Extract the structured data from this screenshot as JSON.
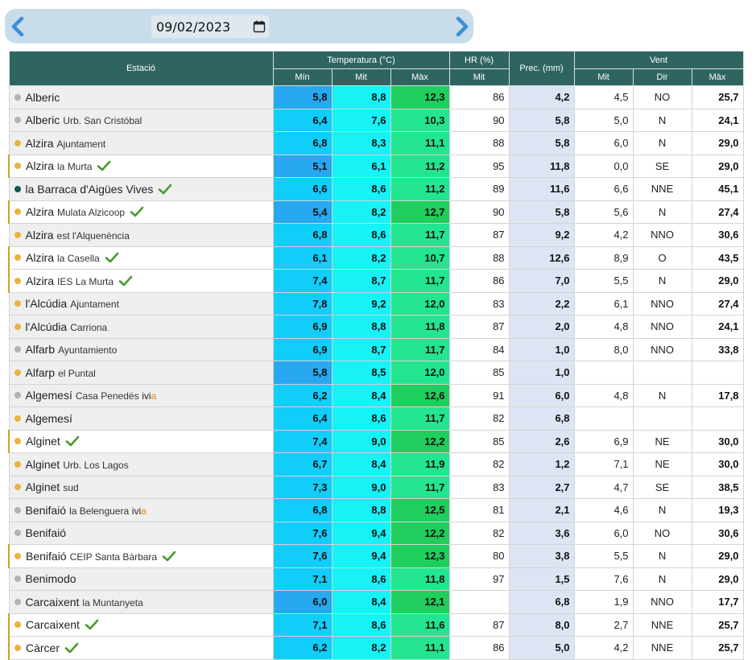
{
  "date": {
    "value": "09/02/2023",
    "prev_icon": "chevron-left-icon",
    "next_icon": "chevron-right-icon",
    "calendar_icon": "calendar-icon"
  },
  "colors": {
    "header_bg": "#2f6561",
    "min_cold": "#27a8f0",
    "min": "#10cdfa",
    "mit": "#16f2f6",
    "max_hot": "#1fce5c",
    "max": "#23e58f",
    "prec_bg": "#dde5f4",
    "dot_orange": "#e9b33c",
    "dot_gray": "#b2b2b2",
    "dot_teal": "#0d5a52",
    "check_green": "#4a9a2e",
    "ivia_a": "#e08a1e"
  },
  "table": {
    "group_headers": {
      "station": "Estació",
      "temp": "Temperatura (°C)",
      "hr": "HR (%)",
      "prec": "Prec. (mm)",
      "vent": "Vent"
    },
    "sub_headers": {
      "temp_min": "Mín",
      "temp_mit": "Mit",
      "temp_max": "Màx",
      "hr_mit": "Mit",
      "vent_mit": "Mit",
      "vent_dir": "Dir",
      "vent_max": "Màx"
    },
    "rows": [
      {
        "name": "Alberic",
        "sub": "",
        "dot": "gray",
        "check": false,
        "ivia": false,
        "hl": false,
        "min": "5,8",
        "min_cold": true,
        "mit": "8,8",
        "max": "12,3",
        "max_hot": true,
        "hr": "86",
        "prec": "4,2",
        "wmit": "4,5",
        "dir": "NO",
        "wmax": "25,7"
      },
      {
        "name": "Alberic",
        "sub": "Urb. San Cristóbal",
        "dot": "gray",
        "check": false,
        "ivia": false,
        "hl": false,
        "min": "6,4",
        "min_cold": false,
        "mit": "7,6",
        "max": "10,3",
        "max_hot": false,
        "hr": "90",
        "prec": "5,8",
        "wmit": "5,0",
        "dir": "N",
        "wmax": "24,1"
      },
      {
        "name": "Alzira",
        "sub": "Ajuntament",
        "dot": "orange",
        "check": false,
        "ivia": false,
        "hl": false,
        "min": "6,8",
        "min_cold": false,
        "mit": "8,3",
        "max": "11,1",
        "max_hot": false,
        "hr": "88",
        "prec": "5,8",
        "wmit": "6,0",
        "dir": "N",
        "wmax": "29,0"
      },
      {
        "name": "Alzira",
        "sub": "la Murta",
        "dot": "orange",
        "check": true,
        "ivia": false,
        "hl": true,
        "min": "5,1",
        "min_cold": true,
        "mit": "6,1",
        "max": "11,2",
        "max_hot": false,
        "hr": "95",
        "prec": "11,8",
        "wmit": "0,0",
        "dir": "SE",
        "wmax": "29,0"
      },
      {
        "name": "la Barraca d'Aigües Vives",
        "sub": "",
        "dot": "teal",
        "check": true,
        "ivia": false,
        "hl": false,
        "min": "6,6",
        "min_cold": false,
        "mit": "8,6",
        "max": "11,2",
        "max_hot": false,
        "hr": "89",
        "prec": "11,6",
        "wmit": "6,6",
        "dir": "NNE",
        "wmax": "45,1"
      },
      {
        "name": "Alzira",
        "sub": "Mulata Alzicoop",
        "dot": "orange",
        "check": true,
        "ivia": false,
        "hl": true,
        "min": "5,4",
        "min_cold": true,
        "mit": "8,2",
        "max": "12,7",
        "max_hot": true,
        "hr": "90",
        "prec": "5,8",
        "wmit": "5,6",
        "dir": "N",
        "wmax": "27,4"
      },
      {
        "name": "Alzira",
        "sub": "est l'Alquenència",
        "dot": "orange",
        "check": false,
        "ivia": false,
        "hl": false,
        "min": "6,8",
        "min_cold": false,
        "mit": "8,6",
        "max": "11,7",
        "max_hot": false,
        "hr": "87",
        "prec": "9,2",
        "wmit": "4,2",
        "dir": "NNO",
        "wmax": "30,6"
      },
      {
        "name": "Alzira",
        "sub": "la Casella",
        "dot": "orange",
        "check": true,
        "ivia": false,
        "hl": true,
        "min": "6,1",
        "min_cold": false,
        "mit": "8,2",
        "max": "10,7",
        "max_hot": false,
        "hr": "88",
        "prec": "12,6",
        "wmit": "8,9",
        "dir": "O",
        "wmax": "43,5"
      },
      {
        "name": "Alzira",
        "sub": "IES La Murta",
        "dot": "orange",
        "check": true,
        "ivia": false,
        "hl": true,
        "min": "7,4",
        "min_cold": false,
        "mit": "8,7",
        "max": "11,7",
        "max_hot": false,
        "hr": "86",
        "prec": "7,0",
        "wmit": "5,5",
        "dir": "N",
        "wmax": "29,0"
      },
      {
        "name": "l'Alcúdia",
        "sub": "Ajuntament",
        "dot": "orange",
        "check": false,
        "ivia": false,
        "hl": false,
        "min": "7,8",
        "min_cold": false,
        "mit": "9,2",
        "max": "12,0",
        "max_hot": false,
        "hr": "83",
        "prec": "2,2",
        "wmit": "6,1",
        "dir": "NNO",
        "wmax": "27,4"
      },
      {
        "name": "l'Alcúdia",
        "sub": "Carriona",
        "dot": "orange",
        "check": false,
        "ivia": false,
        "hl": false,
        "min": "6,9",
        "min_cold": false,
        "mit": "8,8",
        "max": "11,8",
        "max_hot": false,
        "hr": "87",
        "prec": "2,0",
        "wmit": "4,8",
        "dir": "NNO",
        "wmax": "24,1"
      },
      {
        "name": "Alfarb",
        "sub": "Ayuntamiento",
        "dot": "gray",
        "check": false,
        "ivia": false,
        "hl": false,
        "min": "6,9",
        "min_cold": false,
        "mit": "8,7",
        "max": "11,7",
        "max_hot": false,
        "hr": "84",
        "prec": "1,0",
        "wmit": "8,0",
        "dir": "NNO",
        "wmax": "33,8"
      },
      {
        "name": "Alfarp",
        "sub": "el Puntal",
        "dot": "orange",
        "check": false,
        "ivia": false,
        "hl": false,
        "min": "5,8",
        "min_cold": true,
        "mit": "8,5",
        "max": "12,0",
        "max_hot": false,
        "hr": "85",
        "prec": "1,0",
        "wmit": "",
        "dir": "",
        "wmax": ""
      },
      {
        "name": "Algemesí",
        "sub": "Casa Penedés",
        "dot": "gray",
        "check": false,
        "ivia": true,
        "hl": false,
        "min": "6,2",
        "min_cold": false,
        "mit": "8,4",
        "max": "12,6",
        "max_hot": true,
        "hr": "91",
        "prec": "6,0",
        "wmit": "4,8",
        "dir": "N",
        "wmax": "17,8"
      },
      {
        "name": "Algemesí",
        "sub": "",
        "dot": "orange",
        "check": false,
        "ivia": false,
        "hl": false,
        "min": "6,4",
        "min_cold": false,
        "mit": "8,6",
        "max": "11,7",
        "max_hot": false,
        "hr": "82",
        "prec": "6,8",
        "wmit": "",
        "dir": "",
        "wmax": ""
      },
      {
        "name": "Alginet",
        "sub": "",
        "dot": "orange",
        "check": true,
        "ivia": false,
        "hl": true,
        "min": "7,4",
        "min_cold": false,
        "mit": "9,0",
        "max": "12,2",
        "max_hot": true,
        "hr": "85",
        "prec": "2,6",
        "wmit": "6,9",
        "dir": "NE",
        "wmax": "30,0"
      },
      {
        "name": "Alginet",
        "sub": "Urb. Los Lagos",
        "dot": "orange",
        "check": false,
        "ivia": false,
        "hl": false,
        "min": "6,7",
        "min_cold": false,
        "mit": "8,4",
        "max": "11,9",
        "max_hot": false,
        "hr": "82",
        "prec": "1,2",
        "wmit": "7,1",
        "dir": "NE",
        "wmax": "30,0"
      },
      {
        "name": "Alginet",
        "sub": "sud",
        "dot": "orange",
        "check": false,
        "ivia": false,
        "hl": false,
        "min": "7,3",
        "min_cold": false,
        "mit": "9,0",
        "max": "11,7",
        "max_hot": false,
        "hr": "83",
        "prec": "2,7",
        "wmit": "4,7",
        "dir": "SE",
        "wmax": "38,5"
      },
      {
        "name": "Benifaió",
        "sub": "la Belenguera",
        "dot": "gray",
        "check": false,
        "ivia": true,
        "hl": false,
        "min": "6,8",
        "min_cold": false,
        "mit": "8,8",
        "max": "12,5",
        "max_hot": true,
        "hr": "81",
        "prec": "2,1",
        "wmit": "4,6",
        "dir": "N",
        "wmax": "19,3"
      },
      {
        "name": "Benifaió",
        "sub": "",
        "dot": "gray",
        "check": false,
        "ivia": false,
        "hl": false,
        "min": "7,6",
        "min_cold": false,
        "mit": "9,4",
        "max": "12,2",
        "max_hot": true,
        "hr": "82",
        "prec": "3,6",
        "wmit": "6,0",
        "dir": "NO",
        "wmax": "30,6"
      },
      {
        "name": "Benifaió",
        "sub": "CEIP Santa Bàrbara",
        "dot": "orange",
        "check": true,
        "ivia": false,
        "hl": true,
        "min": "7,6",
        "min_cold": false,
        "mit": "9,4",
        "max": "12,3",
        "max_hot": true,
        "hr": "80",
        "prec": "3,8",
        "wmit": "5,5",
        "dir": "N",
        "wmax": "29,0"
      },
      {
        "name": "Benimodo",
        "sub": "",
        "dot": "gray",
        "check": false,
        "ivia": false,
        "hl": false,
        "min": "7,1",
        "min_cold": false,
        "mit": "8,6",
        "max": "11,8",
        "max_hot": false,
        "hr": "97",
        "prec": "1,5",
        "wmit": "7,6",
        "dir": "N",
        "wmax": "29,0"
      },
      {
        "name": "Carcaixent",
        "sub": "la Muntanyeta",
        "dot": "gray",
        "check": false,
        "ivia": false,
        "hl": false,
        "min": "6,0",
        "min_cold": true,
        "mit": "8,4",
        "max": "12,1",
        "max_hot": true,
        "hr": "",
        "prec": "6,8",
        "wmit": "1,9",
        "dir": "NNO",
        "wmax": "17,7"
      },
      {
        "name": "Carcaixent",
        "sub": "",
        "dot": "orange",
        "check": true,
        "ivia": false,
        "hl": true,
        "min": "7,1",
        "min_cold": false,
        "mit": "8,6",
        "max": "11,6",
        "max_hot": false,
        "hr": "87",
        "prec": "8,0",
        "wmit": "2,7",
        "dir": "NNE",
        "wmax": "25,7"
      },
      {
        "name": "Càrcer",
        "sub": "",
        "dot": "orange",
        "check": true,
        "ivia": false,
        "hl": true,
        "min": "6,2",
        "min_cold": false,
        "mit": "8,2",
        "max": "11,1",
        "max_hot": false,
        "hr": "86",
        "prec": "5,0",
        "wmit": "4,2",
        "dir": "NNE",
        "wmax": "25,7"
      }
    ]
  }
}
